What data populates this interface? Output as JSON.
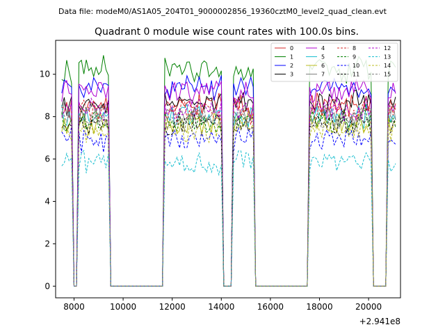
{
  "chart_data": {
    "type": "line",
    "suptitle": "Data file: modeM0/AS1A05_204T01_9000002856_19360cztM0_level2_quad_clean.evt",
    "title": "Quadrant 0 module wise count rates with 100.0s bins.",
    "xlabel": "",
    "ylabel": "",
    "offset_text": "+2.941e8",
    "xlim": [
      7250,
      21300
    ],
    "ylim": [
      -0.55,
      11.6
    ],
    "xticks": [
      8000,
      10000,
      12000,
      14000,
      16000,
      18000,
      20000
    ],
    "yticks": [
      0,
      2,
      4,
      6,
      8,
      10
    ],
    "legend_position": "upper right",
    "segments": [
      {
        "start": 7500,
        "end": 7900
      },
      {
        "start": 8200,
        "end": 9400
      },
      {
        "start": 11700,
        "end": 14000
      },
      {
        "start": 14500,
        "end": 15300
      },
      {
        "start": 17600,
        "end": 20100
      },
      {
        "start": 20800,
        "end": 21100
      }
    ],
    "x": [
      7500,
      7600,
      7700,
      7800,
      7900,
      8000,
      8100,
      8200,
      8300,
      8400,
      8500,
      8600,
      8700,
      8800,
      8900,
      9000,
      9100,
      9200,
      9300,
      9400,
      9500,
      9600,
      9700,
      9800,
      9900,
      10000,
      10100,
      10200,
      10300,
      10400,
      10500,
      10600,
      10700,
      10800,
      10900,
      11000,
      11100,
      11200,
      11300,
      11400,
      11500,
      11600,
      11700,
      11800,
      11900,
      12000,
      12100,
      12200,
      12300,
      12400,
      12500,
      12600,
      12700,
      12800,
      12900,
      13000,
      13100,
      13200,
      13300,
      13400,
      13500,
      13600,
      13700,
      13800,
      13900,
      14000,
      14100,
      14200,
      14300,
      14400,
      14500,
      14600,
      14700,
      14800,
      14900,
      15000,
      15100,
      15200,
      15300,
      15400,
      15500,
      15600,
      15700,
      15800,
      15900,
      16000,
      16100,
      16200,
      16300,
      16400,
      16500,
      16600,
      16700,
      16800,
      16900,
      17000,
      17100,
      17200,
      17300,
      17400,
      17500,
      17600,
      17700,
      17800,
      17900,
      18000,
      18100,
      18200,
      18300,
      18400,
      18500,
      18600,
      18700,
      18800,
      18900,
      19000,
      19100,
      19200,
      19300,
      19400,
      19500,
      19600,
      19700,
      19800,
      19900,
      20000,
      20100,
      20200,
      20300,
      20400,
      20500,
      20600,
      20700,
      20800,
      20900,
      21000,
      21100
    ],
    "series": [
      {
        "name": "0",
        "color": "#d62728",
        "dash": "solid",
        "base": 8.5
      },
      {
        "name": "1",
        "color": "#008000",
        "dash": "solid",
        "base": 10.2
      },
      {
        "name": "2",
        "color": "#0000ff",
        "dash": "solid",
        "base": 9.4
      },
      {
        "name": "3",
        "color": "#000000",
        "dash": "solid",
        "base": 8.7
      },
      {
        "name": "4",
        "color": "#b000d0",
        "dash": "solid",
        "base": 9.2
      },
      {
        "name": "5",
        "color": "#17becf",
        "dash": "solid",
        "base": 8.0
      },
      {
        "name": "6",
        "color": "#bcbd22",
        "dash": "solid",
        "base": 7.7
      },
      {
        "name": "7",
        "color": "#7f7f7f",
        "dash": "solid",
        "base": 8.1
      },
      {
        "name": "8",
        "color": "#d62728",
        "dash": "dashed",
        "base": 8.3
      },
      {
        "name": "9",
        "color": "#008000",
        "dash": "dashed",
        "base": 7.8
      },
      {
        "name": "10",
        "color": "#0000ff",
        "dash": "dashed",
        "base": 6.9
      },
      {
        "name": "11",
        "color": "#000000",
        "dash": "dashed",
        "base": 7.6
      },
      {
        "name": "12",
        "color": "#b000d0",
        "dash": "dashed",
        "base": 8.4
      },
      {
        "name": "13",
        "color": "#17becf",
        "dash": "dashed",
        "base": 5.9
      },
      {
        "name": "14",
        "color": "#bcbd22",
        "dash": "dashed",
        "base": 7.4
      },
      {
        "name": "15",
        "color": "#7f7f7f",
        "dash": "dashed",
        "base": 7.9
      }
    ]
  }
}
